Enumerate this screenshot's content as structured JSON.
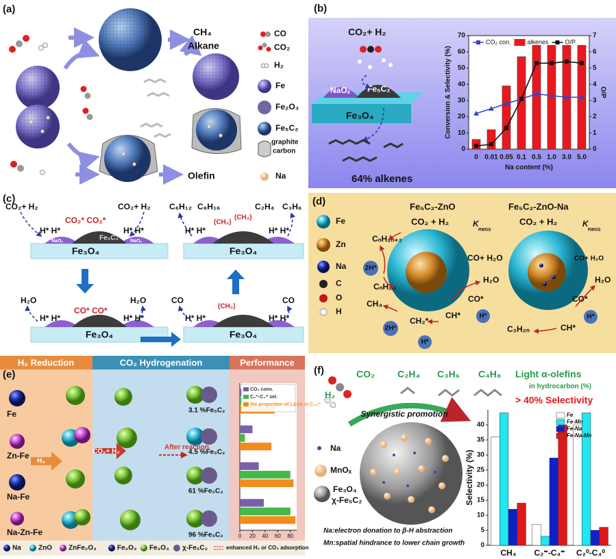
{
  "panel_a": {
    "label": "(a)",
    "product_1": "CH₄",
    "product_2": "Alkane",
    "product_3": "Olefin",
    "legend": [
      "CO",
      "CO₂",
      "H₂",
      "Fe",
      "Fe₂O₃",
      "Fe₅C₂",
      "graphite",
      "carbon",
      "Na"
    ]
  },
  "panel_b": {
    "label": "(b)",
    "reactants": "CO₂+ H₂",
    "naox": "NaOₓ",
    "fe5c2": "Fe₅C₂",
    "support": "Fe₃O₄",
    "caption": "64% alkenes"
  },
  "panel_c": {
    "label": "(c)",
    "reactants": "CO₂+ H₂",
    "co2_ads": "CO₂* CO₂*",
    "h_ads": "H* H*",
    "fe5c2": "Fe₅C₂",
    "naox": "NaOₓ",
    "support": "Fe₃O₄",
    "products": [
      "C₆H₁₂",
      "C₈H₁₆",
      "C₂H₄",
      "C₃H₆"
    ],
    "water": "H₂O",
    "co_ads": "CO* CO*",
    "co": "CO",
    "chain": "(CH₂)"
  },
  "panel_d": {
    "label": "(d)",
    "legend": [
      "Fe",
      "Zn",
      "Na",
      "C",
      "O",
      "H"
    ],
    "title_1": "Fe₅C₂-ZnO",
    "title_2": "Fe₅C₂-ZnO-Na",
    "reactants": "CO₂ + H₂",
    "k": "K",
    "k_sub": "RWGS",
    "alkane": "CₙH₂ₙ₊₂",
    "h2": "2H*",
    "alkene": "CₙH₂ₙ",
    "co_water": "CO+ H₂O",
    "water": "H₂O",
    "ch4": "CH₄",
    "co_ads": "CO*",
    "ch2": "CH₂*",
    "ch": "CH*",
    "h": "H*",
    "olefin": "C₂H₂ₙ"
  },
  "panel_e": {
    "label": "(e)",
    "headers": [
      "H₂ Reduction",
      "CO₂ Hydrogenation",
      "Performance"
    ],
    "h2": "H₂",
    "feed": "CO₂+ H₂",
    "after": "After reaction",
    "fractions": [
      "3.1 %Fe₅C₂",
      "4.5 %Fe₅C₂",
      "61 %Fe₅C₂",
      "96 %Fe₅C₂"
    ],
    "legend": [
      "Na",
      "ZnO",
      "ZnFe₂O₄",
      "Fe₂O₃",
      "Fe₃O₄",
      "χ-Fe₅C₂",
      "enhanced H₂ or CO₂ adsorption"
    ]
  },
  "panel_f": {
    "label": "(f)",
    "co2": "CO₂",
    "h2": "H₂",
    "olefins": [
      "C₂H₄",
      "C₃H₆",
      "C₄H₈"
    ],
    "headline": "Light α-olefins",
    "sub": "in hydrocarbon (%)",
    "selectivity": "> 40% Selectivity",
    "promotion": "Synergistic promotion",
    "legend": [
      "Na",
      "MnOₓ",
      "Fe₃O₄",
      "χ-Fe₅C₂"
    ],
    "notes": [
      "Na:electron donation to β-H abstraction",
      "Mn:spatial hindrance to lower chain growth"
    ]
  },
  "chart_data": [
    {
      "type": "bar",
      "xlabel": "Na content (%)",
      "ylabel": "Conversion & Selectivity (%)",
      "y2label": "O/P",
      "categories": [
        "0",
        "0.01",
        "0.05",
        "0.1",
        "0.5",
        "1.0",
        "3.0",
        "5.0"
      ],
      "ylim": [
        0,
        70
      ],
      "yticks": [
        0,
        10,
        20,
        30,
        40,
        50,
        60,
        70
      ],
      "y2lim": [
        0,
        7
      ],
      "y2ticks": [
        0,
        1,
        2,
        3,
        4,
        5,
        6,
        7
      ],
      "series": [
        {
          "name": "CO₂ con.",
          "kind": "line",
          "marker": "triangle",
          "color": "#3344cc",
          "values": [
            22,
            25,
            28,
            31,
            34,
            33,
            32,
            32
          ]
        },
        {
          "name": "alkenes",
          "kind": "bar",
          "color": "#e8191e",
          "values": [
            6,
            12,
            39,
            57,
            64,
            64,
            64,
            64
          ]
        },
        {
          "name": "O/P",
          "kind": "line",
          "marker": "square",
          "color": "#111111",
          "axis": "y2",
          "values": [
            0.2,
            0.3,
            1.3,
            3.1,
            5.3,
            5.3,
            5.4,
            5.3
          ]
        }
      ]
    },
    {
      "type": "bar",
      "ylabel": "Selectivity (%)",
      "categories": [
        "CH₄",
        "C₂⁼-C₄⁼",
        "C₂⁰-C₄⁰"
      ],
      "ylim": [
        0,
        45
      ],
      "yticks": [
        0,
        5,
        10,
        15,
        20,
        25,
        30,
        35,
        40
      ],
      "series": [
        {
          "name": "Fe",
          "kind": "bar",
          "color": "#ffffff",
          "values": [
            36,
            7,
            40
          ]
        },
        {
          "name": "Fe-Mn",
          "kind": "bar",
          "color": "#22e6f2",
          "values": [
            44,
            3,
            44
          ]
        },
        {
          "name": "Fe-Na",
          "kind": "bar",
          "color": "#1020c8",
          "values": [
            12,
            29,
            5
          ]
        },
        {
          "name": "Fe-Na-Mn",
          "kind": "bar",
          "color": "#e01818",
          "values": [
            14,
            40,
            6
          ]
        }
      ]
    },
    {
      "type": "bar",
      "orientation": "horizontal",
      "categories": [
        "Fe",
        "Zn-Fe",
        "Na-Fe",
        "Na-Zn-Fe"
      ],
      "xlim": [
        0,
        90
      ],
      "xticks": [
        0,
        20,
        40,
        60,
        80
      ],
      "series": [
        {
          "name": "CO₂ conv.",
          "kind": "bar",
          "color": "#7a5fa8",
          "values": [
            5,
            20,
            30,
            38
          ]
        },
        {
          "name": "C₂⁼-C₄⁼ sel.",
          "kind": "bar",
          "color": "#46b84a",
          "values": [
            12,
            8,
            80,
            80
          ]
        },
        {
          "name": "the proportion of LAOs in C₄₊⁼",
          "kind": "bar",
          "color": "#f28c1e",
          "values": [
            55,
            50,
            85,
            88
          ]
        }
      ]
    }
  ]
}
